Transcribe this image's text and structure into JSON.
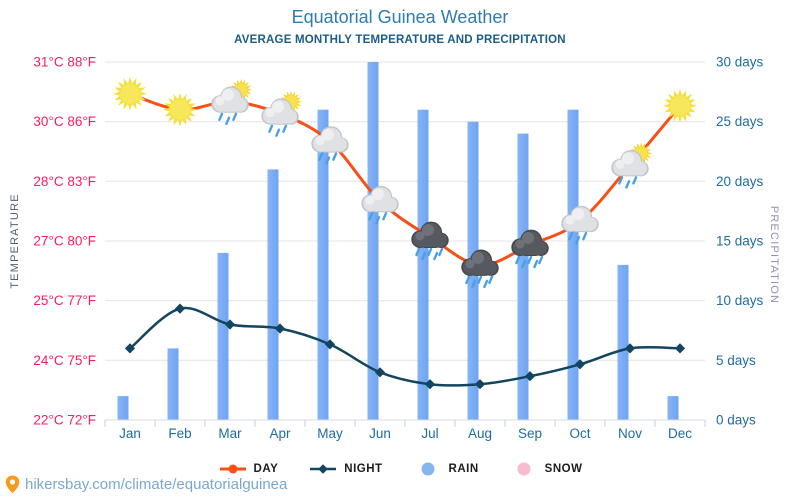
{
  "page": {
    "title": "Equatorial Guinea Weather",
    "subtitle": "AVERAGE MONTHLY TEMPERATURE AND PRECIPITATION"
  },
  "footer": {
    "link": "hikersbay.com/climate/equatorialguinea",
    "pin_color": "#f79b1d"
  },
  "legend": [
    {
      "label": "DAY",
      "marker": "line-dot",
      "color": "#f94f16"
    },
    {
      "label": "NIGHT",
      "marker": "line-diamond",
      "color": "#14455f"
    },
    {
      "label": "RAIN",
      "marker": "dot",
      "color": "#85b7ee"
    },
    {
      "label": "SNOW",
      "marker": "dot",
      "color": "#f6bcd0"
    }
  ],
  "chart_data": {
    "type": "combo",
    "categories": [
      "Jan",
      "Feb",
      "Mar",
      "Apr",
      "May",
      "Jun",
      "Jul",
      "Aug",
      "Sep",
      "Oct",
      "Nov",
      "Dec"
    ],
    "series": [
      {
        "name": "DAY",
        "chart": "line",
        "axis": "temperature",
        "unit": "°C",
        "color": "#f94f16",
        "values": [
          30.2,
          29.8,
          30,
          29.7,
          29,
          27.5,
          26.6,
          25.9,
          26.4,
          27,
          28.4,
          29.9
        ],
        "icons": [
          "sun",
          "sun",
          "sun-cloud-rain",
          "sun-cloud-rain",
          "cloud-rain",
          "cloud-rain",
          "storm-rain",
          "storm-rain",
          "storm-rain",
          "cloud-rain",
          "sun-cloud-rain",
          "sun"
        ]
      },
      {
        "name": "NIGHT",
        "chart": "line",
        "axis": "temperature",
        "unit": "°C",
        "color": "#14455f",
        "values": [
          23.8,
          24.8,
          24.4,
          24.3,
          23.9,
          23.2,
          22.9,
          22.9,
          23.1,
          23.4,
          23.8,
          23.8
        ]
      },
      {
        "name": "RAIN",
        "chart": "bar",
        "axis": "precipitation",
        "unit": "days",
        "color": "#6ea4f2",
        "color_light": "#86b4f6",
        "values": [
          2,
          6,
          14,
          21,
          26,
          30,
          26,
          25,
          24,
          26,
          13,
          2
        ]
      }
    ],
    "left_axis": {
      "title": "TEMPERATURE",
      "min": 22,
      "max": 31,
      "tick_values": [
        31,
        29.5,
        28,
        26.5,
        25,
        23.5,
        22
      ],
      "tick_labels": [
        "31°C 88°F",
        "30°C 86°F",
        "28°C 83°F",
        "27°C 80°F",
        "25°C 77°F",
        "24°C 75°F",
        "22°C 72°F"
      ],
      "label_color": "#fb1d5d",
      "title_color": "#525f70"
    },
    "right_axis": {
      "title": "PRECIPITATION",
      "min": 0,
      "max": 30,
      "tick_values": [
        30,
        25,
        20,
        15,
        10,
        5,
        0
      ],
      "tick_labels": [
        "30 days",
        "25 days",
        "20 days",
        "15 days",
        "10 days",
        "5 days",
        "0 days"
      ],
      "label_color": "#1e6ca1",
      "title_color": "#8f94a8"
    },
    "x_axis_label_color": "#1e6ca1",
    "grid": true,
    "legend_position": "bottom"
  }
}
